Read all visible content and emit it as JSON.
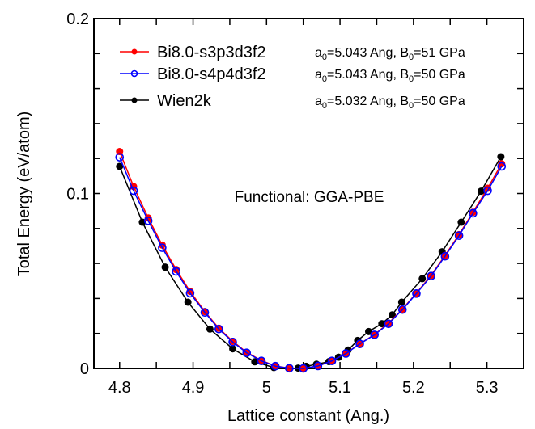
{
  "chart_data": {
    "type": "line",
    "title": "",
    "xlabel": "Lattice constant (Ang.)",
    "ylabel": "Total Energy (eV/atom)",
    "xlim": [
      4.765,
      5.35
    ],
    "ylim": [
      0,
      0.2
    ],
    "x_ticks": [
      4.8,
      4.9,
      5.0,
      5.1,
      5.2,
      5.3
    ],
    "x_tick_labels": [
      "4.8",
      "4.9",
      "5",
      "5.1",
      "5.2",
      "5.3"
    ],
    "x_minor_step": 0.05,
    "y_ticks": [
      0,
      0.1,
      0.2
    ],
    "y_tick_labels": [
      "0",
      "0.1",
      "0.2"
    ],
    "y_minor_step": 0.02,
    "grid": false,
    "legend_position": "top-left",
    "annotation": "Functional: GGA-PBE",
    "series": [
      {
        "name": "Bi8.0-s3p3d3f2",
        "params": {
          "a0_label": "a",
          "a0_sub": "0",
          "a0_text": "=5.043 Ang, ",
          "b0_label": "B",
          "b0_sub": "0",
          "b0_text": "=51 GPa"
        },
        "color": "#ff0000",
        "marker": "filled-diamond",
        "x": [
          4.8,
          4.819,
          4.839,
          4.858,
          4.877,
          4.896,
          4.916,
          4.935,
          4.954,
          4.973,
          4.993,
          5.012,
          5.031,
          5.05,
          5.07,
          5.089,
          5.108,
          5.127,
          5.147,
          5.166,
          5.185,
          5.204,
          5.224,
          5.243,
          5.262,
          5.281,
          5.301,
          5.32
        ],
        "y": [
          0.124,
          0.104,
          0.086,
          0.0705,
          0.0565,
          0.044,
          0.0325,
          0.023,
          0.0155,
          0.0092,
          0.0045,
          0.0014,
          0.0001,
          0.0,
          0.0014,
          0.0043,
          0.0086,
          0.0141,
          0.0194,
          0.0258,
          0.0339,
          0.0431,
          0.0532,
          0.0646,
          0.0765,
          0.0893,
          0.103,
          0.117
        ]
      },
      {
        "name": "Bi8.0-s4p4d3f2",
        "params": {
          "a0_label": "a",
          "a0_sub": "0",
          "a0_text": "=5.043 Ang, ",
          "b0_label": "B",
          "b0_sub": "0",
          "b0_text": "=50 GPa"
        },
        "color": "#0000ff",
        "marker": "open-circle",
        "x": [
          4.8,
          4.819,
          4.839,
          4.858,
          4.877,
          4.896,
          4.916,
          4.935,
          4.954,
          4.973,
          4.993,
          5.012,
          5.031,
          5.05,
          5.07,
          5.089,
          5.108,
          5.127,
          5.147,
          5.166,
          5.185,
          5.204,
          5.224,
          5.243,
          5.262,
          5.281,
          5.301,
          5.32
        ],
        "y": [
          0.1207,
          0.1016,
          0.0844,
          0.069,
          0.0554,
          0.043,
          0.032,
          0.0225,
          0.0151,
          0.0089,
          0.0043,
          0.0013,
          0.0001,
          0.0,
          0.0014,
          0.0043,
          0.0085,
          0.014,
          0.0192,
          0.0255,
          0.0336,
          0.0428,
          0.0528,
          0.0641,
          0.0759,
          0.0887,
          0.1016,
          0.1155
        ]
      },
      {
        "name": "Wien2k",
        "params": {
          "a0_label": "a",
          "a0_sub": "0",
          "a0_text": "=5.032 Ang, ",
          "b0_label": "B",
          "b0_sub": "0",
          "b0_text": "=50 GPa"
        },
        "color": "#000000",
        "marker": "filled-circle",
        "x": [
          4.8,
          4.831,
          4.862,
          4.893,
          4.923,
          4.954,
          4.984,
          5.01,
          5.03,
          5.043,
          5.054,
          5.068,
          5.085,
          5.098,
          5.111,
          5.124,
          5.139,
          5.157,
          5.171,
          5.184,
          5.212,
          5.239,
          5.265,
          5.292,
          5.319
        ],
        "y": [
          0.1155,
          0.0836,
          0.0579,
          0.0379,
          0.0225,
          0.0112,
          0.0038,
          0.0005,
          0.0,
          0.0002,
          0.0012,
          0.0024,
          0.0039,
          0.0064,
          0.0105,
          0.016,
          0.0211,
          0.0256,
          0.0306,
          0.0379,
          0.0513,
          0.0667,
          0.0836,
          0.1013,
          0.121
        ]
      }
    ]
  }
}
